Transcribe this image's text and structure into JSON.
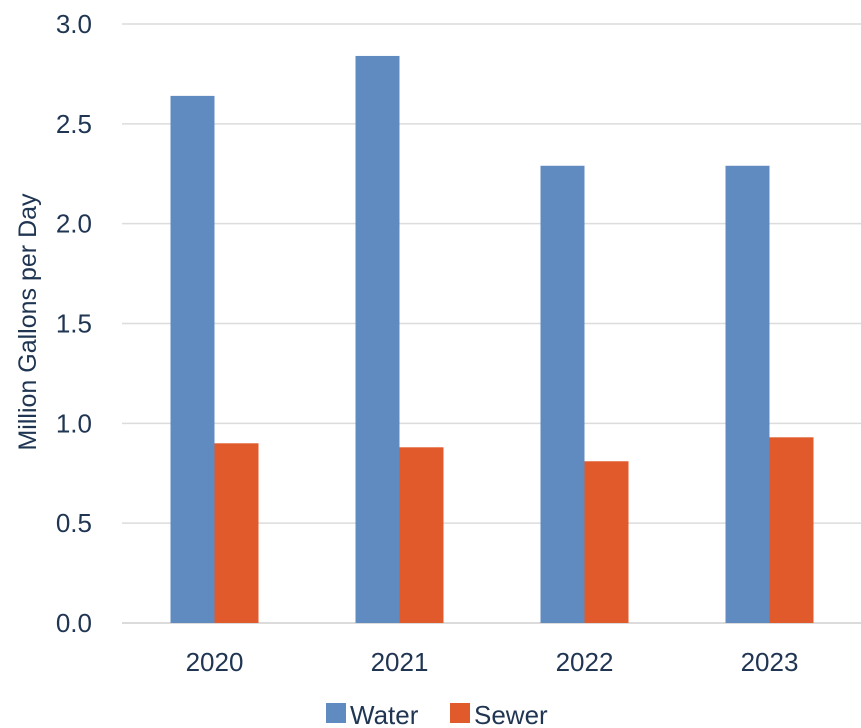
{
  "chart_data": {
    "type": "bar",
    "categories": [
      "2020",
      "2021",
      "2022",
      "2023"
    ],
    "series": [
      {
        "name": "Water",
        "values": [
          2.64,
          2.84,
          2.29,
          2.29
        ],
        "color": "#5f8bc0"
      },
      {
        "name": "Sewer",
        "values": [
          0.9,
          0.88,
          0.81,
          0.93
        ],
        "color": "#e05a2b"
      }
    ],
    "title": "",
    "xlabel": "",
    "ylabel": "Million Gallons per Day",
    "ylim": [
      0,
      3.0
    ],
    "yticks": [
      "0.0",
      "0.5",
      "1.0",
      "1.5",
      "2.0",
      "2.5",
      "3.0"
    ],
    "grid": true,
    "legend_position": "bottom"
  }
}
